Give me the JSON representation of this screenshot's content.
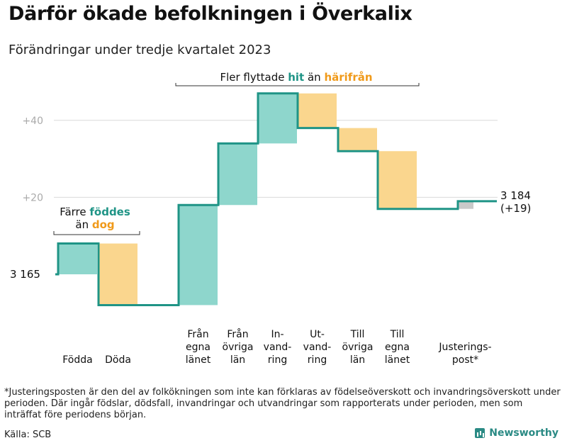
{
  "title": "Därför ökade befolkningen i Överkalix",
  "subtitle": "Förändringar under tredje kvartalet 2023",
  "chart_data": {
    "type": "waterfall",
    "unit": "personer",
    "start_label": "3  165",
    "start_value": 3165,
    "end_label": "3 184",
    "end_change_label": "(+19)",
    "end_value": 3184,
    "y_baseline": 3165,
    "y_ticks": [
      {
        "value": 20,
        "label": "+20"
      },
      {
        "value": 40,
        "label": "+40"
      }
    ],
    "ylim": [
      -14,
      52
    ],
    "steps": [
      {
        "label": [
          "Födda"
        ],
        "change": 8,
        "kind": "positive"
      },
      {
        "label": [
          "Döda"
        ],
        "change": -16,
        "kind": "negative"
      },
      {
        "label": [
          "Från",
          "egna",
          "länet"
        ],
        "change": 26,
        "kind": "positive"
      },
      {
        "label": [
          "Från",
          "övriga",
          "län"
        ],
        "change": 16,
        "kind": "positive"
      },
      {
        "label": [
          "In-",
          "vand-",
          "ring"
        ],
        "change": 13,
        "kind": "positive"
      },
      {
        "label": [
          "Ut-",
          "vand-",
          "ring"
        ],
        "change": -9,
        "kind": "negative"
      },
      {
        "label": [
          "Till",
          "övriga",
          "län"
        ],
        "change": -6,
        "kind": "negative"
      },
      {
        "label": [
          "Till",
          "egna",
          "länet"
        ],
        "change": -15,
        "kind": "negative"
      },
      {
        "label": [
          "Justerings-",
          "post*"
        ],
        "change": 2,
        "kind": "adjustment"
      }
    ],
    "annotations": {
      "births_deaths": {
        "pre": "Färre",
        "highlight1": "föddes",
        "mid": "än",
        "highlight2": "dog"
      },
      "migration": {
        "pre": "Fler flyttade",
        "highlight1": "hit",
        "mid": "än",
        "highlight2": "härifrån"
      }
    },
    "colors": {
      "positive": "#8ed6cc",
      "negative": "#fad68e",
      "adjustment": "#c9c9c9",
      "line": "#1f9486",
      "highlight_pos": "#1f9486",
      "highlight_neg": "#f09a1a",
      "grid": "#d9d9d9",
      "tick": "#aaaaaa"
    }
  },
  "footnote": "*Justeringsposten är den del av folkökningen som inte kan förklaras av födelseöverskott och invandringsöverskott under perioden. Där ingår födslar, dödsfall, invandringar och utvandringar som rapporterats under perioden, men som inträffat före periodens början.",
  "source": "Källa: SCB",
  "brand": "Newsworthy"
}
